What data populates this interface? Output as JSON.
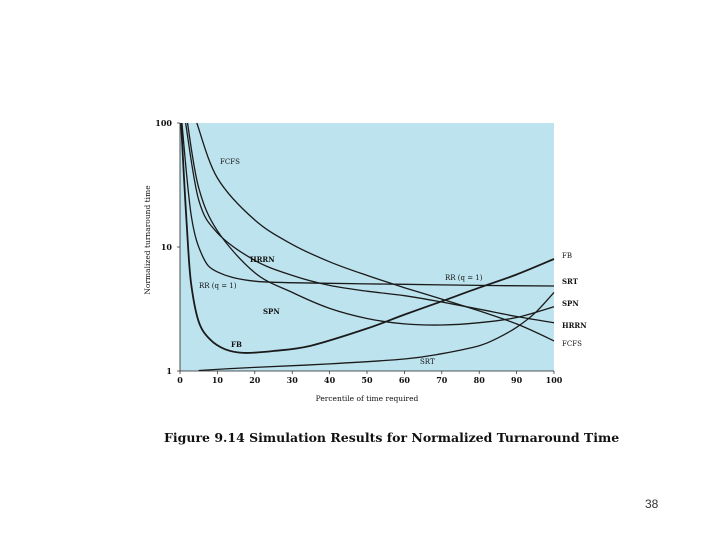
{
  "caption": "Figure 9.14  Simulation Results for Normalized Turnaround Time",
  "page_number": "38",
  "colors": {
    "plot_background": "#bde3ee",
    "curve": "#1a1a1a"
  },
  "chart_data": {
    "type": "line",
    "xlabel": "Percentile of time required",
    "ylabel": "Normalized turnaround time",
    "xlim": [
      0,
      100
    ],
    "ylim": [
      1,
      100
    ],
    "yscale": "log",
    "xticks": [
      0,
      10,
      20,
      30,
      40,
      50,
      60,
      70,
      80,
      90,
      100
    ],
    "yticks": [
      1,
      10,
      100
    ],
    "ytick_labels": [
      "1",
      "10",
      "100"
    ],
    "series": [
      {
        "name": "FCFS",
        "label": "FCFS",
        "x": [
          4.5,
          10,
          20,
          30,
          40,
          50,
          60,
          70,
          80,
          90,
          100
        ],
        "y": [
          100,
          36,
          16.5,
          10.5,
          7.6,
          5.9,
          4.7,
          3.8,
          3.05,
          2.4,
          1.75
        ]
      },
      {
        "name": "HRRN",
        "label": "HRRN",
        "x": [
          1.5,
          5,
          10,
          20,
          30,
          40,
          50,
          60,
          70,
          80,
          90,
          100
        ],
        "y": [
          100,
          24,
          13,
          7.8,
          5.9,
          4.9,
          4.4,
          4.05,
          3.6,
          3.15,
          2.75,
          2.45
        ]
      },
      {
        "name": "RR (q = 1)",
        "label": "RR (q = 1)",
        "x": [
          0.5,
          3,
          6,
          10,
          20,
          40,
          60,
          80,
          100
        ],
        "y": [
          100,
          18,
          8.5,
          6.3,
          5.3,
          5.1,
          5.0,
          4.9,
          4.85
        ]
      },
      {
        "name": "SPN",
        "label": "SPN",
        "x": [
          2,
          5,
          10,
          20,
          30,
          40,
          50,
          60,
          70,
          80,
          90,
          100
        ],
        "y": [
          100,
          30,
          13.5,
          6.2,
          4.3,
          3.2,
          2.65,
          2.4,
          2.35,
          2.45,
          2.7,
          3.3
        ]
      },
      {
        "name": "FB",
        "label": "FB",
        "x": [
          0.3,
          1,
          2,
          3,
          5,
          8,
          12,
          17,
          25,
          35,
          50,
          60,
          70,
          80,
          90,
          100
        ],
        "y": [
          100,
          40,
          12,
          5,
          2.5,
          1.8,
          1.5,
          1.4,
          1.45,
          1.6,
          2.2,
          2.85,
          3.65,
          4.7,
          6.0,
          8.0
        ]
      },
      {
        "name": "SRT",
        "label": "SRT",
        "x": [
          5,
          20,
          40,
          60,
          70,
          80,
          85,
          90,
          95,
          100
        ],
        "y": [
          1.01,
          1.07,
          1.14,
          1.25,
          1.38,
          1.6,
          1.85,
          2.25,
          2.95,
          4.3
        ]
      }
    ],
    "annotations": [
      {
        "text": "FCFS",
        "series": "FCFS",
        "bold": false
      },
      {
        "text": "HRRN",
        "series": "HRRN",
        "bold": true
      },
      {
        "text": "RR (q = 1)",
        "series": "RR (q = 1)",
        "bold": false
      },
      {
        "text": "RR (q = 1)",
        "series": "RR (q = 1)",
        "bold": false
      },
      {
        "text": "SPN",
        "series": "SPN",
        "bold": true
      },
      {
        "text": "FB",
        "series": "FB",
        "bold": true
      },
      {
        "text": "SRT",
        "series": "SRT",
        "bold": false
      },
      {
        "text": "FB",
        "series": "FB",
        "bold": false
      },
      {
        "text": "SRT",
        "series": "SRT",
        "bold": true
      },
      {
        "text": "SPN",
        "series": "SPN",
        "bold": true
      },
      {
        "text": "HRRN",
        "series": "HRRN",
        "bold": true
      },
      {
        "text": "FCFS",
        "series": "FCFS",
        "bold": false
      }
    ]
  }
}
